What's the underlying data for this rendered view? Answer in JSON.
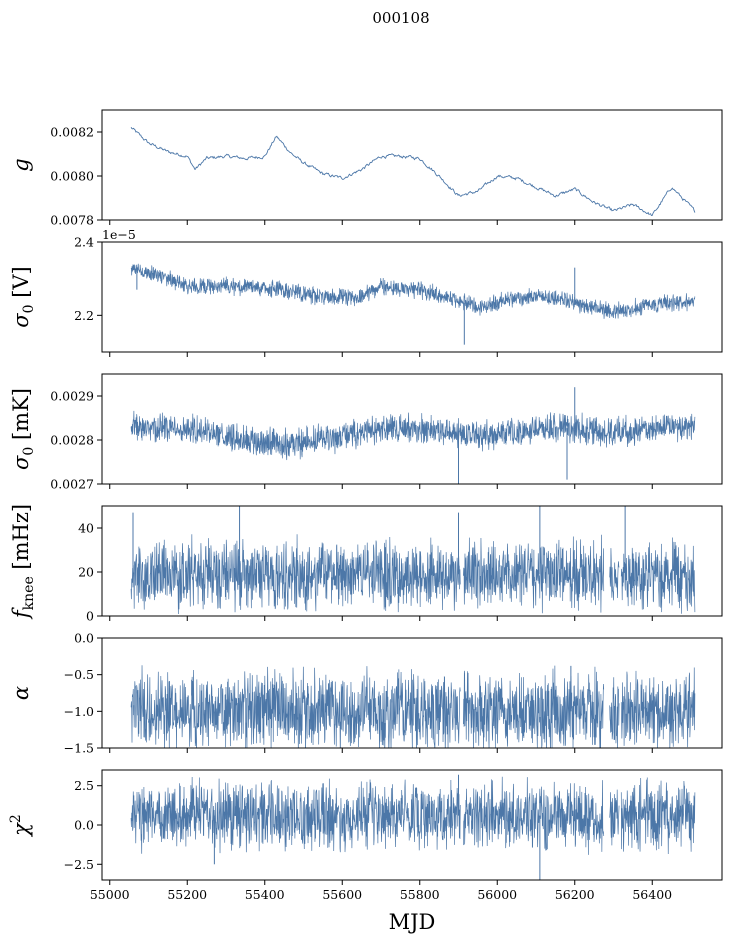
{
  "figure": {
    "suptitle": "000108",
    "xlabel": "MJD"
  },
  "colors": {
    "series": "#4c77a8",
    "axis": "#000000",
    "background": "#ffffff"
  },
  "chart_data": [
    {
      "type": "line",
      "id": "g",
      "ylabel": "g",
      "ylim": [
        0.0078,
        0.0083
      ],
      "yticks": [
        "0.0078",
        "0.0080",
        "0.0082"
      ],
      "ytick_values": [
        0.0078,
        0.008,
        0.0082
      ],
      "offset_text": "",
      "xlim": [
        54980,
        56580
      ],
      "show_xticklabels": false,
      "x_range": [
        55055,
        56510
      ],
      "style": "thin",
      "series": [
        {
          "name": "g",
          "x": [
            55055,
            55100,
            55150,
            55200,
            55220,
            55250,
            55300,
            55350,
            55400,
            55430,
            55470,
            55500,
            55550,
            55600,
            55650,
            55700,
            55750,
            55800,
            55850,
            55900,
            55950,
            56000,
            56050,
            56100,
            56150,
            56200,
            56250,
            56300,
            56350,
            56400,
            56450,
            56510
          ],
          "y": [
            0.00822,
            0.00815,
            0.00811,
            0.00809,
            0.00803,
            0.00808,
            0.00809,
            0.00808,
            0.00809,
            0.00818,
            0.0081,
            0.00806,
            0.00801,
            0.00799,
            0.00803,
            0.00809,
            0.00809,
            0.00808,
            0.008,
            0.00791,
            0.00793,
            0.008,
            0.00799,
            0.00795,
            0.00791,
            0.00794,
            0.00788,
            0.00784,
            0.00787,
            0.00782,
            0.00795,
            0.00784
          ]
        }
      ]
    },
    {
      "type": "line",
      "id": "sigma0v",
      "ylabel": "σ0 [V]",
      "ylim": [
        2.1,
        2.4
      ],
      "yticks": [
        "2.2",
        "2.4"
      ],
      "ytick_values": [
        2.2,
        2.4
      ],
      "offset_text": "1e−5",
      "xlim": [
        54980,
        56580
      ],
      "show_xticklabels": false,
      "x_range": [
        55055,
        56510
      ],
      "style": "noisy",
      "series": [
        {
          "name": "sigma0_V",
          "x": [
            55055,
            55150,
            55200,
            55300,
            55450,
            55550,
            55650,
            55700,
            55800,
            55900,
            55950,
            56050,
            56150,
            56250,
            56300,
            56400,
            56510
          ],
          "y": [
            2.33,
            2.3,
            2.28,
            2.28,
            2.27,
            2.25,
            2.25,
            2.28,
            2.27,
            2.24,
            2.22,
            2.25,
            2.25,
            2.22,
            2.21,
            2.23,
            2.24
          ],
          "band": 0.012,
          "spikes": [
            {
              "x": 56200,
              "y": 2.33
            },
            {
              "x": 55915,
              "y": 2.12
            },
            {
              "x": 55070,
              "y": 2.27
            }
          ]
        }
      ]
    },
    {
      "type": "line",
      "id": "sigma0mk",
      "ylabel": "σ0 [mK]",
      "ylim": [
        0.0027,
        0.00295
      ],
      "yticks": [
        "0.0027",
        "0.0028",
        "0.0029"
      ],
      "ytick_values": [
        0.0027,
        0.0028,
        0.0029
      ],
      "offset_text": "",
      "xlim": [
        54980,
        56580
      ],
      "show_xticklabels": false,
      "x_range": [
        55055,
        56510
      ],
      "style": "noisy",
      "series": [
        {
          "name": "sigma0_mK",
          "x": [
            55055,
            55150,
            55250,
            55350,
            55450,
            55550,
            55650,
            55750,
            55850,
            55950,
            56050,
            56150,
            56250,
            56350,
            56450,
            56510
          ],
          "y": [
            0.00283,
            0.00283,
            0.00282,
            0.0028,
            0.00279,
            0.0028,
            0.00282,
            0.00283,
            0.00282,
            0.00281,
            0.00282,
            0.00283,
            0.00282,
            0.00282,
            0.00283,
            0.00283
          ],
          "band": 1.7e-05,
          "spikes": [
            {
              "x": 56200,
              "y": 0.00292
            },
            {
              "x": 55900,
              "y": 0.0027
            },
            {
              "x": 56180,
              "y": 0.00271
            }
          ]
        }
      ]
    },
    {
      "type": "line",
      "id": "fknee",
      "ylabel": "f_knee [mHz]",
      "ylim": [
        0,
        50
      ],
      "yticks": [
        "0",
        "20",
        "40"
      ],
      "ytick_values": [
        0,
        20,
        40
      ],
      "offset_text": "",
      "xlim": [
        54980,
        56580
      ],
      "show_xticklabels": false,
      "x_range": [
        55055,
        56510
      ],
      "style": "noisy",
      "series": [
        {
          "name": "f_knee",
          "x": [
            55055,
            55200,
            55400,
            55600,
            55800,
            56000,
            56200,
            56400,
            56510
          ],
          "y": [
            18,
            19,
            19,
            19,
            19,
            19,
            19,
            19,
            18
          ],
          "band": 8,
          "gaps": [
            [
              55905,
              55912
            ],
            [
              56275,
              56290
            ],
            [
              56315,
              56320
            ]
          ],
          "spikes": [
            {
              "x": 55335,
              "y": 50
            },
            {
              "x": 56110,
              "y": 50
            },
            {
              "x": 56330,
              "y": 50
            },
            {
              "x": 55060,
              "y": 47
            },
            {
              "x": 55900,
              "y": 47
            }
          ]
        }
      ]
    },
    {
      "type": "line",
      "id": "alpha",
      "ylabel": "α",
      "ylim": [
        -1.5,
        0.0
      ],
      "yticks": [
        "−1.5",
        "−1.0",
        "−0.5",
        "0.0"
      ],
      "ytick_values": [
        -1.5,
        -1.0,
        -0.5,
        0.0
      ],
      "offset_text": "",
      "xlim": [
        54980,
        56580
      ],
      "show_xticklabels": false,
      "x_range": [
        55055,
        56510
      ],
      "style": "noisy",
      "series": [
        {
          "name": "alpha",
          "x": [
            55055,
            55200,
            55400,
            55600,
            55800,
            56000,
            56200,
            56400,
            56510
          ],
          "y": [
            -1.0,
            -1.0,
            -1.0,
            -1.0,
            -1.0,
            -1.0,
            -1.0,
            -1.0,
            -1.0
          ],
          "band": 0.28,
          "gaps": [
            [
              55905,
              55912
            ],
            [
              56275,
              56290
            ],
            [
              56315,
              56320
            ]
          ],
          "spikes": [
            {
              "x": 56190,
              "y": -0.38
            }
          ]
        }
      ]
    },
    {
      "type": "line",
      "id": "chi2",
      "ylabel": "χ2",
      "ylim": [
        -3.5,
        3.5
      ],
      "yticks": [
        "−2.5",
        "0.0",
        "2.5"
      ],
      "ytick_values": [
        -2.5,
        0.0,
        2.5
      ],
      "offset_text": "",
      "xlim": [
        54980,
        56580
      ],
      "show_xticklabels": true,
      "xticks": [
        "55000",
        "55200",
        "55400",
        "55600",
        "55800",
        "56000",
        "56200",
        "56400"
      ],
      "xtick_values": [
        55000,
        55200,
        55400,
        55600,
        55800,
        56000,
        56200,
        56400
      ],
      "x_range": [
        55055,
        56510
      ],
      "style": "noisy",
      "series": [
        {
          "name": "chi2",
          "x": [
            55055,
            55200,
            55400,
            55600,
            55800,
            56000,
            56200,
            56400,
            56510
          ],
          "y": [
            0.6,
            0.6,
            0.6,
            0.6,
            0.6,
            0.6,
            0.6,
            0.6,
            0.6
          ],
          "band": 1.1,
          "gaps": [
            [
              55905,
              55912
            ],
            [
              56275,
              56290
            ],
            [
              56315,
              56320
            ]
          ],
          "spikes": [
            {
              "x": 56110,
              "y": -3.5
            },
            {
              "x": 55270,
              "y": -2.5
            },
            {
              "x": 55900,
              "y": 3.2
            }
          ]
        }
      ]
    }
  ]
}
